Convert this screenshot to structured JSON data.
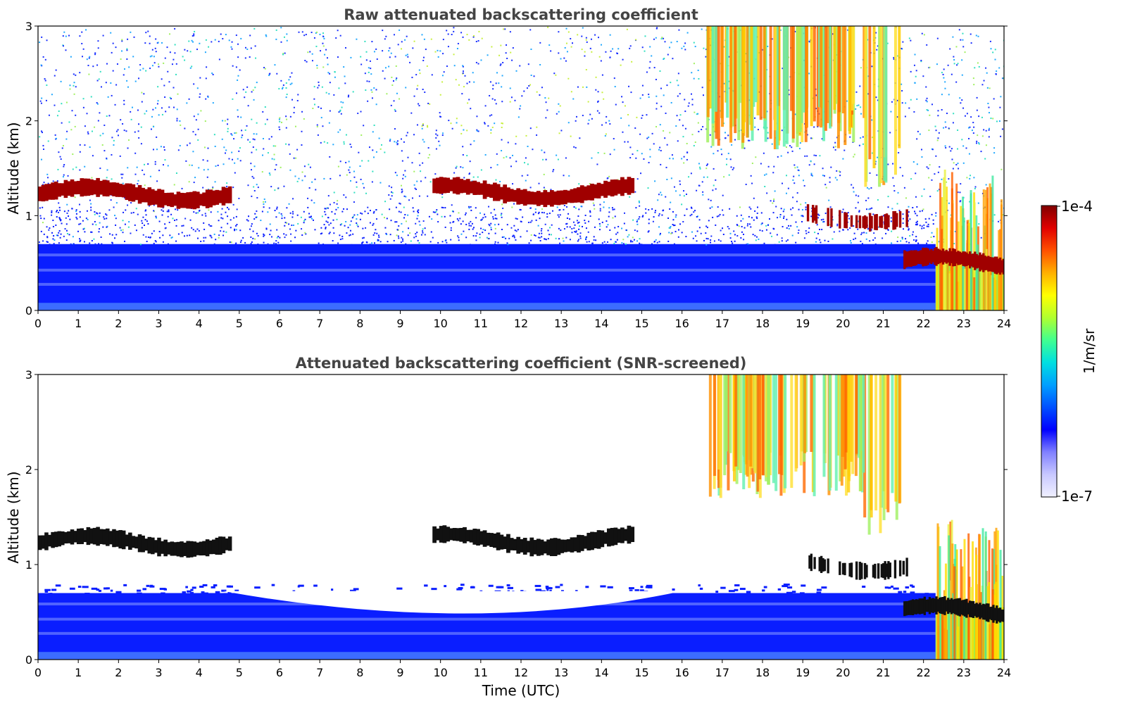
{
  "chart_data": [
    {
      "type": "heatmap",
      "title": "Raw attenuated backscattering coefficient",
      "xlabel": "",
      "ylabel": "Altitude (km)",
      "xlim": [
        0,
        24
      ],
      "ylim": [
        0,
        3
      ],
      "xticks": [
        "0",
        "1",
        "2",
        "3",
        "4",
        "5",
        "6",
        "7",
        "8",
        "9",
        "10",
        "11",
        "12",
        "13",
        "14",
        "15",
        "16",
        "17",
        "18",
        "19",
        "20",
        "21",
        "22",
        "23",
        "24"
      ],
      "yticks": [
        "0",
        "1",
        "2",
        "3"
      ],
      "cloud_layers": [
        {
          "t_start": 0.0,
          "t_end": 4.8,
          "alt_km": 1.23,
          "note": "liquid cloud layer"
        },
        {
          "t_start": 9.8,
          "t_end": 14.8,
          "alt_km": 1.25,
          "note": "liquid cloud layer"
        },
        {
          "t_start": 16.6,
          "t_end": 21.4,
          "alt_km": 2.5,
          "note": "ice precipitation fall streaks"
        },
        {
          "t_start": 19.1,
          "t_end": 21.6,
          "alt_km": 1.0,
          "note": "cloud fragments"
        },
        {
          "t_start": 21.5,
          "t_end": 24.0,
          "alt_km": 0.5,
          "note": "low cloud"
        }
      ],
      "boundary_layer_top_km": 0.7
    },
    {
      "type": "heatmap",
      "title": "Attenuated backscattering coefficient (SNR-screened)",
      "xlabel": "Time (UTC)",
      "ylabel": "Altitude (km)",
      "xlim": [
        0,
        24
      ],
      "ylim": [
        0,
        3
      ],
      "xticks": [
        "0",
        "1",
        "2",
        "3",
        "4",
        "5",
        "6",
        "7",
        "8",
        "9",
        "10",
        "11",
        "12",
        "13",
        "14",
        "15",
        "16",
        "17",
        "18",
        "19",
        "20",
        "21",
        "22",
        "23",
        "24"
      ],
      "yticks": [
        "0",
        "1",
        "2",
        "3"
      ],
      "boundary_layer_top_km": 0.7
    }
  ],
  "colorbar": {
    "label": "1/m/sr",
    "max_label": "1e-4",
    "min_label": "1e-7",
    "colors": [
      "#f0f0ff",
      "#c8c8ff",
      "#8080ff",
      "#0000ff",
      "#0050ff",
      "#00a0ff",
      "#00e0e0",
      "#40ff90",
      "#b0ff30",
      "#ffff00",
      "#ffb000",
      "#ff5000",
      "#e00000",
      "#800000"
    ]
  }
}
